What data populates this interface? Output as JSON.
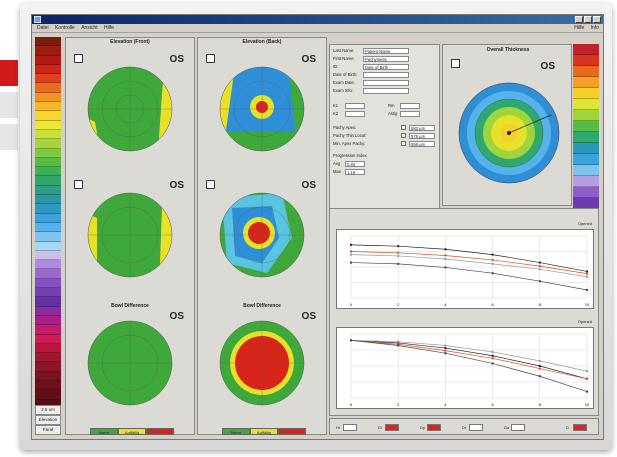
{
  "app": {
    "title": "",
    "menu": [
      "Datei",
      "Kontrolle",
      "Ansicht",
      "Hilfe"
    ],
    "menu_right": [
      "Hilfe",
      "Info"
    ]
  },
  "colors": {
    "left_tabs": [
      "#d11a1a",
      "#e6e6e6",
      "#e6e6e6"
    ],
    "scale": [
      "#7a1c0c",
      "#9b1c10",
      "#b31a14",
      "#cf2418",
      "#e0401b",
      "#ea6a1c",
      "#f09320",
      "#f5b724",
      "#f5d82a",
      "#e8ea36",
      "#c8e03a",
      "#a3d63c",
      "#7cca3e",
      "#55bd45",
      "#3cb054",
      "#30a66a",
      "#2e9c86",
      "#2c98a6",
      "#2f98c4",
      "#3aa2dc",
      "#55b2ea",
      "#7dc4f0",
      "#a8d7f5",
      "#c9c0ea",
      "#b08ade",
      "#9a68d0",
      "#8650c2",
      "#7240b2",
      "#6232a4",
      "#8a2b9e",
      "#b01c86",
      "#c61a6a",
      "#d01a54",
      "#b8173f",
      "#a0162f",
      "#8c1427",
      "#7a1222",
      "#6c101d",
      "#600e1a",
      "#540c17"
    ],
    "map_green": "#3ea83a",
    "map_yellow": "#e8e12a",
    "map_red": "#d8251c",
    "map_blue": "#2f8fd6",
    "map_cyan": "#59c4e0"
  },
  "scale_labels": [
    "2.5 um",
    "Elevation",
    "Paraf"
  ],
  "maps": {
    "elev_front": {
      "heading": "Elevation (Front)",
      "eye": "OS"
    },
    "elev_back": {
      "heading": "Elevation (Back)",
      "eye": "OS"
    },
    "elev_front2": {
      "eye": "OS"
    },
    "elev_back2": {
      "eye": "OS"
    },
    "bfs_front": {
      "heading": "Bowl Difference",
      "eye": "OS"
    },
    "bfs_back": {
      "heading": "Bowl Difference",
      "eye": "OS"
    },
    "legend_left": [
      "Norm",
      "Auffällig",
      ""
    ],
    "legend_right": [
      "Norm",
      "Auffällig",
      ""
    ]
  },
  "info": {
    "rows": [
      {
        "label": "Last Name:",
        "value": "Patient Name"
      },
      {
        "label": "First Name:",
        "value": "Pachymetry"
      },
      {
        "label": "ID:",
        "value": "Date of Birth"
      },
      {
        "label": "Date of Birth:",
        "value": ""
      },
      {
        "label": "Exam Date:",
        "value": ""
      },
      {
        "label": "Exam Info:",
        "value": ""
      }
    ],
    "kv_left": [
      {
        "k": "K1",
        "v": ""
      },
      {
        "k": "K2",
        "v": ""
      }
    ],
    "kv_right": [
      {
        "k": "Rm",
        "v": ""
      },
      {
        "k": "Astig",
        "v": ""
      }
    ],
    "checks": [
      {
        "label": "Pachy Apex:",
        "value": "583 µm"
      },
      {
        "label": "Pachy Thin Locat:",
        "value": "578 µm"
      },
      {
        "label": "Min. Apex Pachy:",
        "value": "558 µm"
      }
    ],
    "prog_title": "Progression Index",
    "prog": [
      {
        "k": "Avg",
        "v": "0.84"
      },
      {
        "k": "Max",
        "v": "1.16"
      }
    ]
  },
  "overall": {
    "heading": "Overall Thickness",
    "eye": "OS",
    "scale_labels": [
      "Mm",
      "Poss",
      "S"
    ],
    "scale_colors": [
      "#c0242a",
      "#d8351c",
      "#ea6a1c",
      "#f3a024",
      "#f3d02a",
      "#d9e635",
      "#9ed43c",
      "#55bd45",
      "#2ea86e",
      "#2a98b8",
      "#3aa2dc",
      "#7cc3f0",
      "#b69de0",
      "#8f5ec8",
      "#6e3ab0",
      "#9a2c9a"
    ]
  },
  "graphs": {
    "note": "",
    "top_title": "",
    "bottom_title": "",
    "unit_top": "Opened",
    "unit_bottom": "Opened",
    "x_ticks": [
      "0",
      "2",
      "4",
      "6",
      "8",
      "10"
    ],
    "top_series": [
      {
        "color": "#222222",
        "values": [
          600,
          597,
          590,
          578,
          560,
          540
        ]
      },
      {
        "color": "#e04a20",
        "values": [
          585,
          582,
          576,
          566,
          552,
          535
        ]
      },
      {
        "color": "#999999",
        "values": [
          578,
          575,
          568,
          557,
          545,
          528
        ]
      },
      {
        "color": "#444444",
        "values": [
          560,
          557,
          549,
          536,
          518,
          498
        ]
      }
    ],
    "bottom_series": [
      {
        "color": "#222222",
        "values": [
          0,
          -2,
          -6,
          -12,
          -20,
          -30
        ]
      },
      {
        "color": "#e04a20",
        "values": [
          0,
          -3,
          -8,
          -14,
          -22,
          -30
        ]
      },
      {
        "color": "#999999",
        "values": [
          0,
          -1,
          -4,
          -9,
          -16,
          -24
        ]
      },
      {
        "color": "#444444",
        "values": [
          0,
          -4,
          -10,
          -18,
          -28,
          -40
        ]
      }
    ]
  },
  "bottom_fields": [
    {
      "k": "Ht",
      "v": "",
      "red": false
    },
    {
      "k": "Di",
      "v": "",
      "red": true
    },
    {
      "k": "Dp",
      "v": "",
      "red": true
    },
    {
      "k": "Dt",
      "v": "",
      "red": false
    },
    {
      "k": "Da",
      "v": "",
      "red": false
    },
    {
      "k": "D",
      "v": "",
      "red": true
    }
  ]
}
